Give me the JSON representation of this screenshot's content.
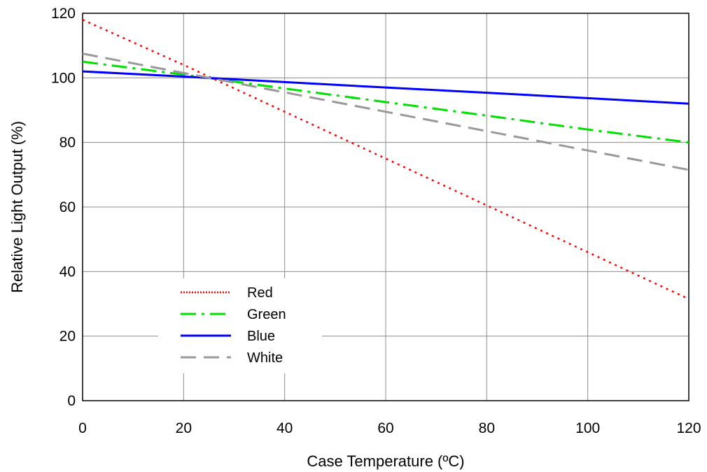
{
  "chart_data": {
    "type": "line",
    "title": "",
    "xlabel": "Case Temperature (ºC)",
    "ylabel": "Relative Light Output (%)",
    "xlim": [
      0,
      120
    ],
    "ylim": [
      0,
      120
    ],
    "xticks": [
      0,
      20,
      40,
      60,
      80,
      100,
      120
    ],
    "yticks": [
      0,
      20,
      40,
      60,
      80,
      100,
      120
    ],
    "xtick_labels": [
      "0",
      "20",
      "40",
      "60",
      "80",
      "100",
      "120"
    ],
    "ytick_labels": [
      "0",
      "20",
      "40",
      "60",
      "80",
      "100",
      "120"
    ],
    "grid": true,
    "legend_position": "lower-left",
    "series": [
      {
        "name": "Red",
        "color": "#ff0000",
        "style": "dotted",
        "x": [
          0,
          20,
          40,
          60,
          80,
          100,
          120
        ],
        "y": [
          118,
          104,
          89.5,
          75,
          60.5,
          46,
          31.5
        ]
      },
      {
        "name": "Green",
        "color": "#00e000",
        "style": "dash-dot",
        "x": [
          0,
          20,
          40,
          60,
          80,
          100,
          120
        ],
        "y": [
          105,
          101,
          96.7,
          92.5,
          88.3,
          84,
          80
        ]
      },
      {
        "name": "Blue",
        "color": "#0000ff",
        "style": "solid",
        "x": [
          0,
          20,
          40,
          60,
          80,
          100,
          120
        ],
        "y": [
          102,
          100.4,
          98.7,
          97,
          95.4,
          93.7,
          92
        ]
      },
      {
        "name": "White",
        "color": "#999999",
        "style": "dashed",
        "x": [
          0,
          20,
          40,
          60,
          80,
          100,
          120
        ],
        "y": [
          107.5,
          101.5,
          95.5,
          89.5,
          83.5,
          77.5,
          71.5
        ]
      }
    ]
  }
}
